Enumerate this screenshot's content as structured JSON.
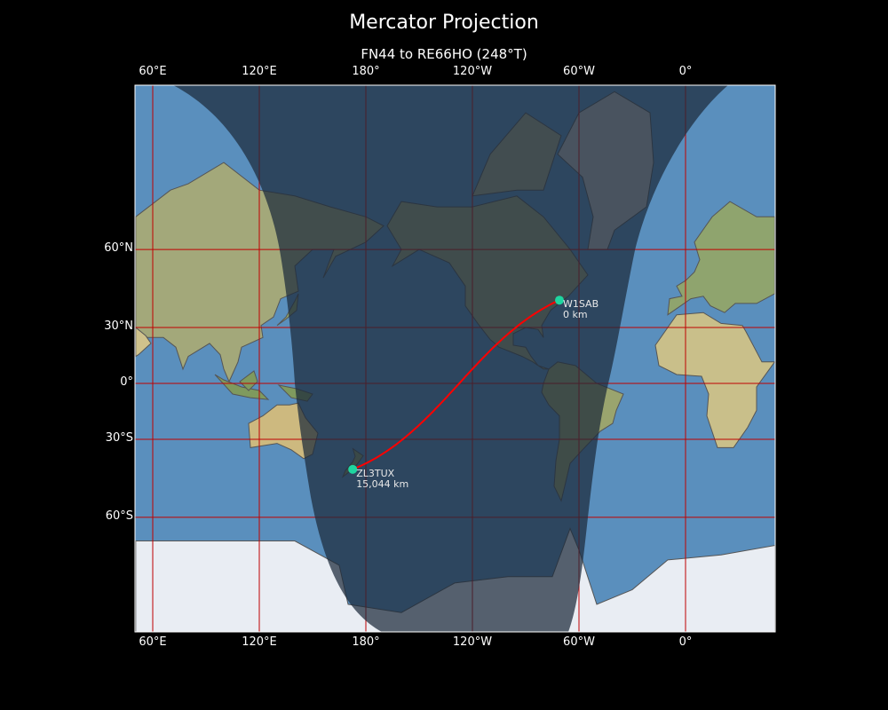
{
  "title": "Mercator Projection",
  "subtitle": "FN44 to RE66HO (248°T)",
  "x_ticks": [
    {
      "label": "60°E",
      "lon": 60
    },
    {
      "label": "120°E",
      "lon": 120
    },
    {
      "label": "180°",
      "lon": 180
    },
    {
      "label": "120°W",
      "lon": -120
    },
    {
      "label": "60°W",
      "lon": -60
    },
    {
      "label": "0°",
      "lon": 0
    }
  ],
  "y_ticks": [
    {
      "label": "60°N",
      "lat": 60
    },
    {
      "label": "30°N",
      "lat": 30
    },
    {
      "label": "0°",
      "lat": 0
    },
    {
      "label": "30°S",
      "lat": -30
    },
    {
      "label": "60°S",
      "lat": -60
    }
  ],
  "stations": [
    {
      "call": "W1SAB",
      "distance": "0 km",
      "lat": 42.4,
      "lon": -71.0
    },
    {
      "call": "ZL3TUX",
      "distance": "15,044 km",
      "lat": -43.5,
      "lon": 172.6
    }
  ],
  "colors": {
    "path": "#ff0000",
    "marker": "#1ed6a0",
    "grid": "#c00000",
    "ocean": "#5a8fbd",
    "night_overlay": "#1c2a3a"
  }
}
